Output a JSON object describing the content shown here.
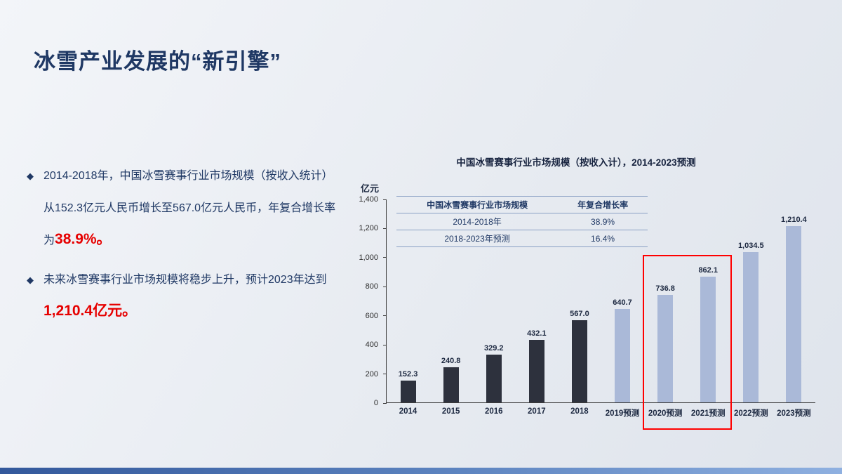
{
  "slide": {
    "title": "冰雪产业发展的“新引擎”",
    "bullet_marker": "◆"
  },
  "bullets": [
    {
      "pre": "2014-2018年，中国冰雪赛事行业市场规模（按收入统计）从152.3亿元人民币增长至567.0亿元人民币，年复合增长率为",
      "highlight": "38.9%。"
    },
    {
      "pre": "未来冰雪赛事行业市场规模将稳步上升，预计2023年达到",
      "highlight": "1,210.4亿元。"
    }
  ],
  "chart_data": {
    "type": "bar",
    "title": "中国冰雪赛事行业市场规模（按收入计），2014-2023预测",
    "unit_label": "亿元",
    "categories": [
      "2014",
      "2015",
      "2016",
      "2017",
      "2018",
      "2019预测",
      "2020预测",
      "2021预测",
      "2022预测",
      "2023预测"
    ],
    "values": [
      152.3,
      240.8,
      329.2,
      432.1,
      567.0,
      640.7,
      736.8,
      862.1,
      1034.5,
      1210.4
    ],
    "value_labels": [
      "152.3",
      "240.8",
      "329.2",
      "432.1",
      "567.0",
      "640.7",
      "736.8",
      "862.1",
      "1,034.5",
      "1,210.4"
    ],
    "ylim": [
      0,
      1400
    ],
    "yticks": [
      "0",
      "200",
      "400",
      "600",
      "800",
      "1,000",
      "1,200",
      "1,400"
    ],
    "actual_count": 5,
    "bar_colors": {
      "actual": "#2d313d",
      "forecast": "#aab9d8"
    },
    "highlight_start_index": 6,
    "highlight_span": 2,
    "inner_table": {
      "header": [
        "中国冰雪赛事行业市场规模",
        "年复合增长率"
      ],
      "rows": [
        [
          "2014-2018年",
          "38.9%"
        ],
        [
          "2018-2023年预测",
          "16.4%"
        ]
      ]
    },
    "legend_position": "none",
    "grid": false
  },
  "colors": {
    "title_text": "#1f3864",
    "body_text": "#1f3864",
    "emphasis_red": "#e60000",
    "actual_bar": "#2d313d",
    "forecast_bar": "#aab9d8",
    "highlight_border": "#ff0000"
  }
}
